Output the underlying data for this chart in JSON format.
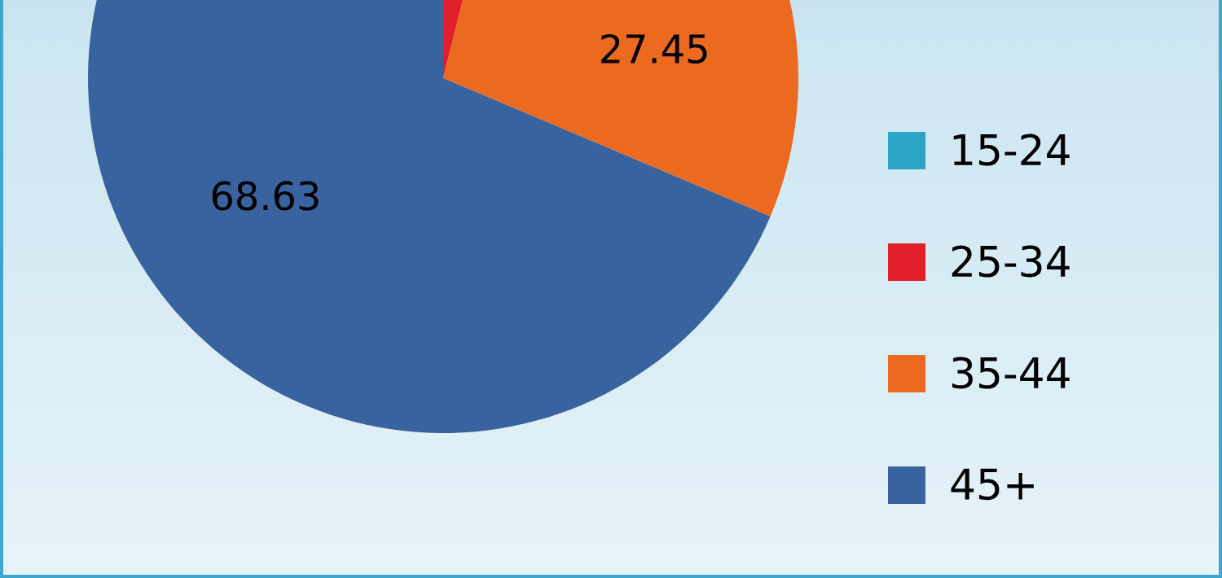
{
  "chart_data": {
    "type": "pie",
    "categories": [
      "15-24",
      "25-34",
      "35-44",
      "45+"
    ],
    "values": [
      0,
      3.92,
      27.45,
      68.63
    ],
    "value_labels": [
      null,
      null,
      "27.45",
      "68.63"
    ],
    "colors": [
      "#2ba4c6",
      "#e01f2b",
      "#ec6920",
      "#39639e"
    ],
    "legend": "right"
  }
}
